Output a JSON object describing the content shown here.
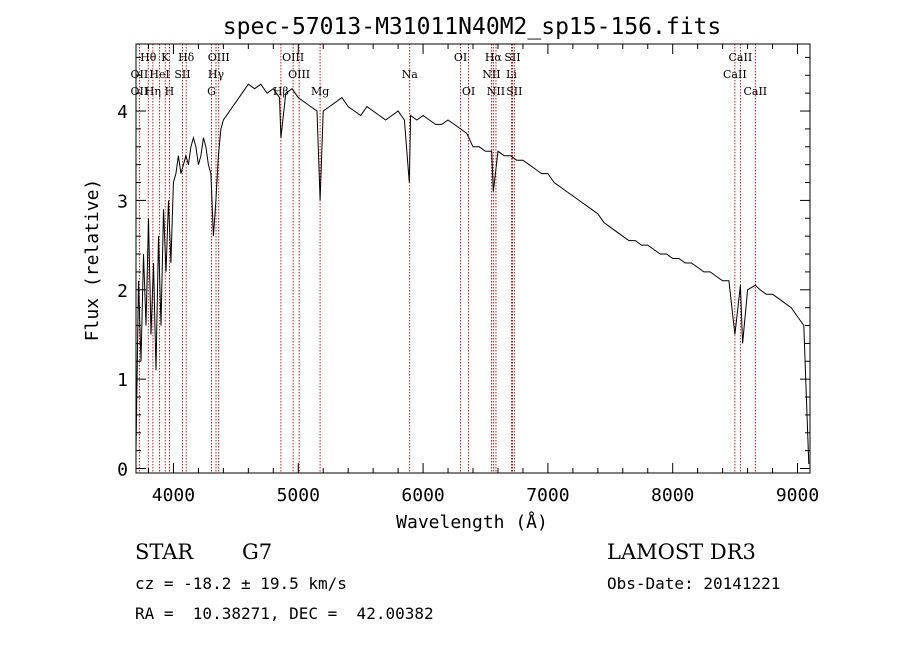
{
  "chart_data": {
    "type": "line",
    "title": "spec-57013-M31011N40M2_sp15-156.fits",
    "xlabel": "Wavelength (Å)",
    "ylabel": "Flux (relative)",
    "xlim": [
      3700,
      9100
    ],
    "ylim": [
      -0.05,
      4.75
    ],
    "x_ticks": [
      4000,
      5000,
      6000,
      7000,
      8000,
      9000
    ],
    "y_ticks": [
      0,
      1,
      2,
      3,
      4
    ],
    "grid": false,
    "series": [
      {
        "name": "spectrum",
        "x": [
          3700,
          3720,
          3740,
          3760,
          3780,
          3800,
          3820,
          3840,
          3860,
          3880,
          3900,
          3920,
          3940,
          3960,
          3980,
          4000,
          4020,
          4040,
          4060,
          4080,
          4100,
          4120,
          4140,
          4160,
          4180,
          4200,
          4220,
          4240,
          4260,
          4280,
          4300,
          4320,
          4340,
          4360,
          4380,
          4400,
          4450,
          4500,
          4550,
          4600,
          4650,
          4700,
          4750,
          4800,
          4850,
          4861,
          4900,
          4950,
          5000,
          5050,
          5100,
          5150,
          5175,
          5200,
          5250,
          5300,
          5350,
          5400,
          5450,
          5500,
          5550,
          5600,
          5650,
          5700,
          5750,
          5800,
          5850,
          5890,
          5900,
          5950,
          6000,
          6050,
          6100,
          6150,
          6200,
          6250,
          6300,
          6350,
          6400,
          6450,
          6500,
          6550,
          6563,
          6600,
          6650,
          6700,
          6750,
          6800,
          6850,
          6900,
          6950,
          7000,
          7050,
          7100,
          7150,
          7200,
          7250,
          7300,
          7350,
          7400,
          7450,
          7500,
          7550,
          7600,
          7650,
          7700,
          7750,
          7800,
          7850,
          7900,
          7950,
          8000,
          8050,
          8100,
          8150,
          8200,
          8250,
          8300,
          8350,
          8400,
          8450,
          8498,
          8542,
          8560,
          8600,
          8662,
          8700,
          8750,
          8800,
          8850,
          8900,
          8950,
          9000,
          9050,
          9090
        ],
        "values": [
          0.2,
          2.1,
          1.2,
          2.4,
          1.6,
          2.8,
          1.5,
          2.3,
          1.1,
          2.6,
          1.6,
          2.9,
          2.2,
          3.0,
          2.3,
          3.2,
          3.3,
          3.5,
          3.3,
          3.4,
          3.5,
          3.4,
          3.6,
          3.7,
          3.6,
          3.4,
          3.5,
          3.7,
          3.6,
          3.4,
          3.3,
          2.6,
          3.0,
          3.5,
          3.8,
          3.9,
          4.0,
          4.1,
          4.2,
          4.3,
          4.25,
          4.3,
          4.2,
          4.25,
          4.15,
          3.7,
          4.2,
          4.25,
          4.15,
          4.1,
          4.05,
          4.0,
          3.0,
          4.0,
          4.05,
          4.1,
          4.15,
          4.05,
          4.0,
          3.95,
          4.05,
          4.0,
          3.95,
          3.9,
          3.95,
          4.0,
          3.9,
          3.2,
          3.95,
          3.9,
          3.95,
          3.9,
          3.85,
          3.85,
          3.9,
          3.85,
          3.8,
          3.75,
          3.6,
          3.6,
          3.55,
          3.55,
          3.1,
          3.55,
          3.5,
          3.5,
          3.45,
          3.45,
          3.4,
          3.35,
          3.3,
          3.3,
          3.2,
          3.15,
          3.1,
          3.05,
          3.0,
          2.95,
          2.9,
          2.85,
          2.75,
          2.7,
          2.65,
          2.6,
          2.55,
          2.55,
          2.5,
          2.5,
          2.45,
          2.4,
          2.4,
          2.35,
          2.35,
          2.3,
          2.3,
          2.25,
          2.2,
          2.2,
          2.15,
          2.1,
          2.1,
          1.5,
          2.05,
          1.4,
          2.0,
          2.05,
          2.0,
          1.95,
          1.95,
          1.9,
          1.85,
          1.8,
          1.7,
          1.6,
          0.05
        ]
      }
    ],
    "emission_lines": [
      {
        "label": "Hθ",
        "x": 3798,
        "row": 0
      },
      {
        "label": "OII",
        "x": 3727,
        "row": 1
      },
      {
        "label": "OII",
        "x": 3727,
        "row": 2
      },
      {
        "label": "Hη",
        "x": 3835,
        "row": 2
      },
      {
        "label": "HeI",
        "x": 3889,
        "row": 1
      },
      {
        "label": "K",
        "x": 3934,
        "row": 0
      },
      {
        "label": "H",
        "x": 3968,
        "row": 2
      },
      {
        "label": "SII",
        "x": 4072,
        "row": 1
      },
      {
        "label": "Hδ",
        "x": 4102,
        "row": 0
      },
      {
        "label": "OIII",
        "x": 4363,
        "row": 0
      },
      {
        "label": "Hγ",
        "x": 4341,
        "row": 1
      },
      {
        "label": "G",
        "x": 4305,
        "row": 2
      },
      {
        "label": "OIII",
        "x": 4959,
        "row": 0
      },
      {
        "label": "OIII",
        "x": 5007,
        "row": 1
      },
      {
        "label": "Hβ",
        "x": 4861,
        "row": 2
      },
      {
        "label": "Mg",
        "x": 5175,
        "row": 2
      },
      {
        "label": "Na",
        "x": 5893,
        "row": 1
      },
      {
        "label": "OI",
        "x": 6300,
        "row": 0
      },
      {
        "label": "OI",
        "x": 6364,
        "row": 2
      },
      {
        "label": "Hα",
        "x": 6563,
        "row": 0
      },
      {
        "label": "SII",
        "x": 6716,
        "row": 0
      },
      {
        "label": "NII",
        "x": 6548,
        "row": 1
      },
      {
        "label": "Li",
        "x": 6708,
        "row": 1
      },
      {
        "label": "NII",
        "x": 6584,
        "row": 2
      },
      {
        "label": "SII",
        "x": 6731,
        "row": 2
      },
      {
        "label": "CaII",
        "x": 8542,
        "row": 0
      },
      {
        "label": "CaII",
        "x": 8498,
        "row": 1
      },
      {
        "label": "CaII",
        "x": 8662,
        "row": 2
      }
    ]
  },
  "info": {
    "object_class": "STAR",
    "subclass": "G7",
    "survey": "LAMOST DR3",
    "redshift_text": "cz = -18.2 ± 19.5 km/s",
    "obs_date_text": "Obs-Date: 20141221",
    "coords_text": "RA =  10.38271, DEC =  42.00382"
  }
}
